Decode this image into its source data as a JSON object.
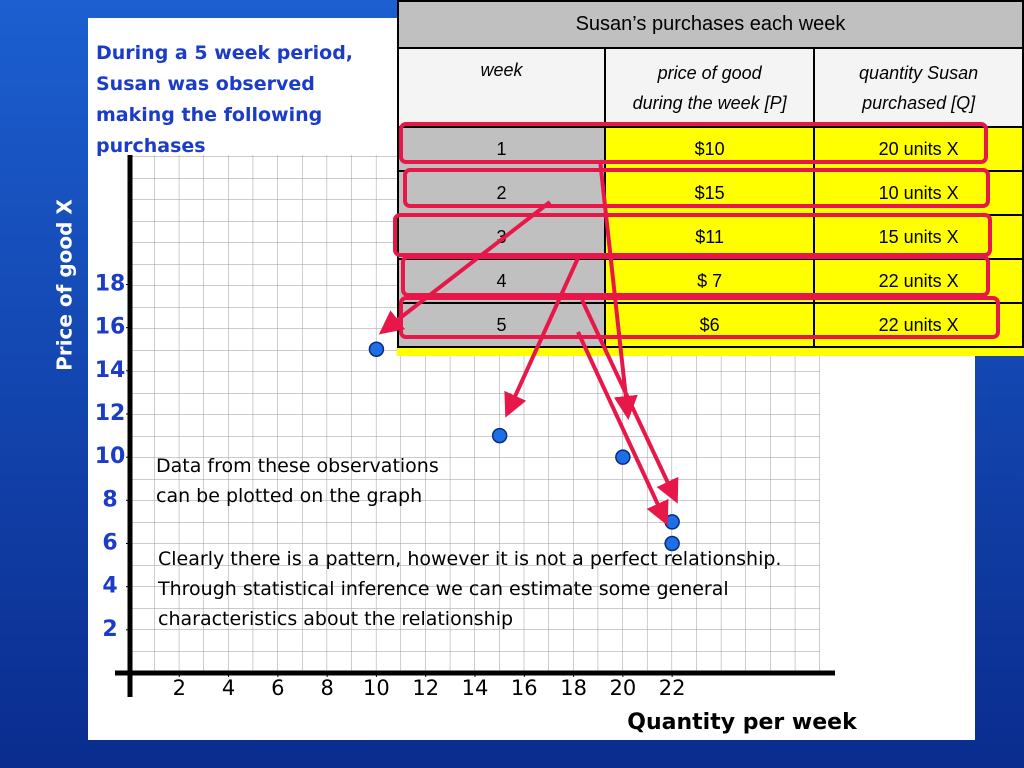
{
  "chart_data": {
    "type": "scatter",
    "description": [
      "During a 5 week period,",
      "Susan was observed",
      "making the following",
      "purchases"
    ],
    "annotations": [
      [
        "Data from these observations",
        "can be plotted on the graph"
      ],
      [
        "Clearly there is a pattern, however it is not a perfect relationship.",
        "Through statistical inference we can estimate some general",
        "characteristics about the relationship"
      ]
    ],
    "x_label": "Quantity per week",
    "y_label": "Price of good X",
    "x": [
      10,
      15,
      20,
      22,
      22
    ],
    "values": [
      15,
      11,
      10,
      7,
      6
    ],
    "color": "#1e6fe6",
    "xlim": [
      0,
      28
    ],
    "ylim": [
      0,
      24
    ],
    "xticks": [
      2,
      4,
      6,
      8,
      10,
      12,
      14,
      16,
      18,
      20,
      22
    ],
    "yticks": [
      2,
      4,
      6,
      8,
      10,
      12,
      14,
      16,
      18
    ]
  },
  "table": {
    "title": "Susan’s purchases each week",
    "headers": [
      [
        "week"
      ],
      [
        "price of good",
        "during the week [P]"
      ],
      [
        "quantity Susan",
        "purchased [Q]"
      ]
    ],
    "rows": [
      [
        "1",
        "$10",
        "20 units X"
      ],
      [
        "2",
        "$15",
        "10 units X"
      ],
      [
        "3",
        "$11",
        "15 units X"
      ],
      [
        "4",
        "$ 7",
        "22 units X"
      ],
      [
        "5",
        "$6",
        "22 units X"
      ]
    ]
  }
}
